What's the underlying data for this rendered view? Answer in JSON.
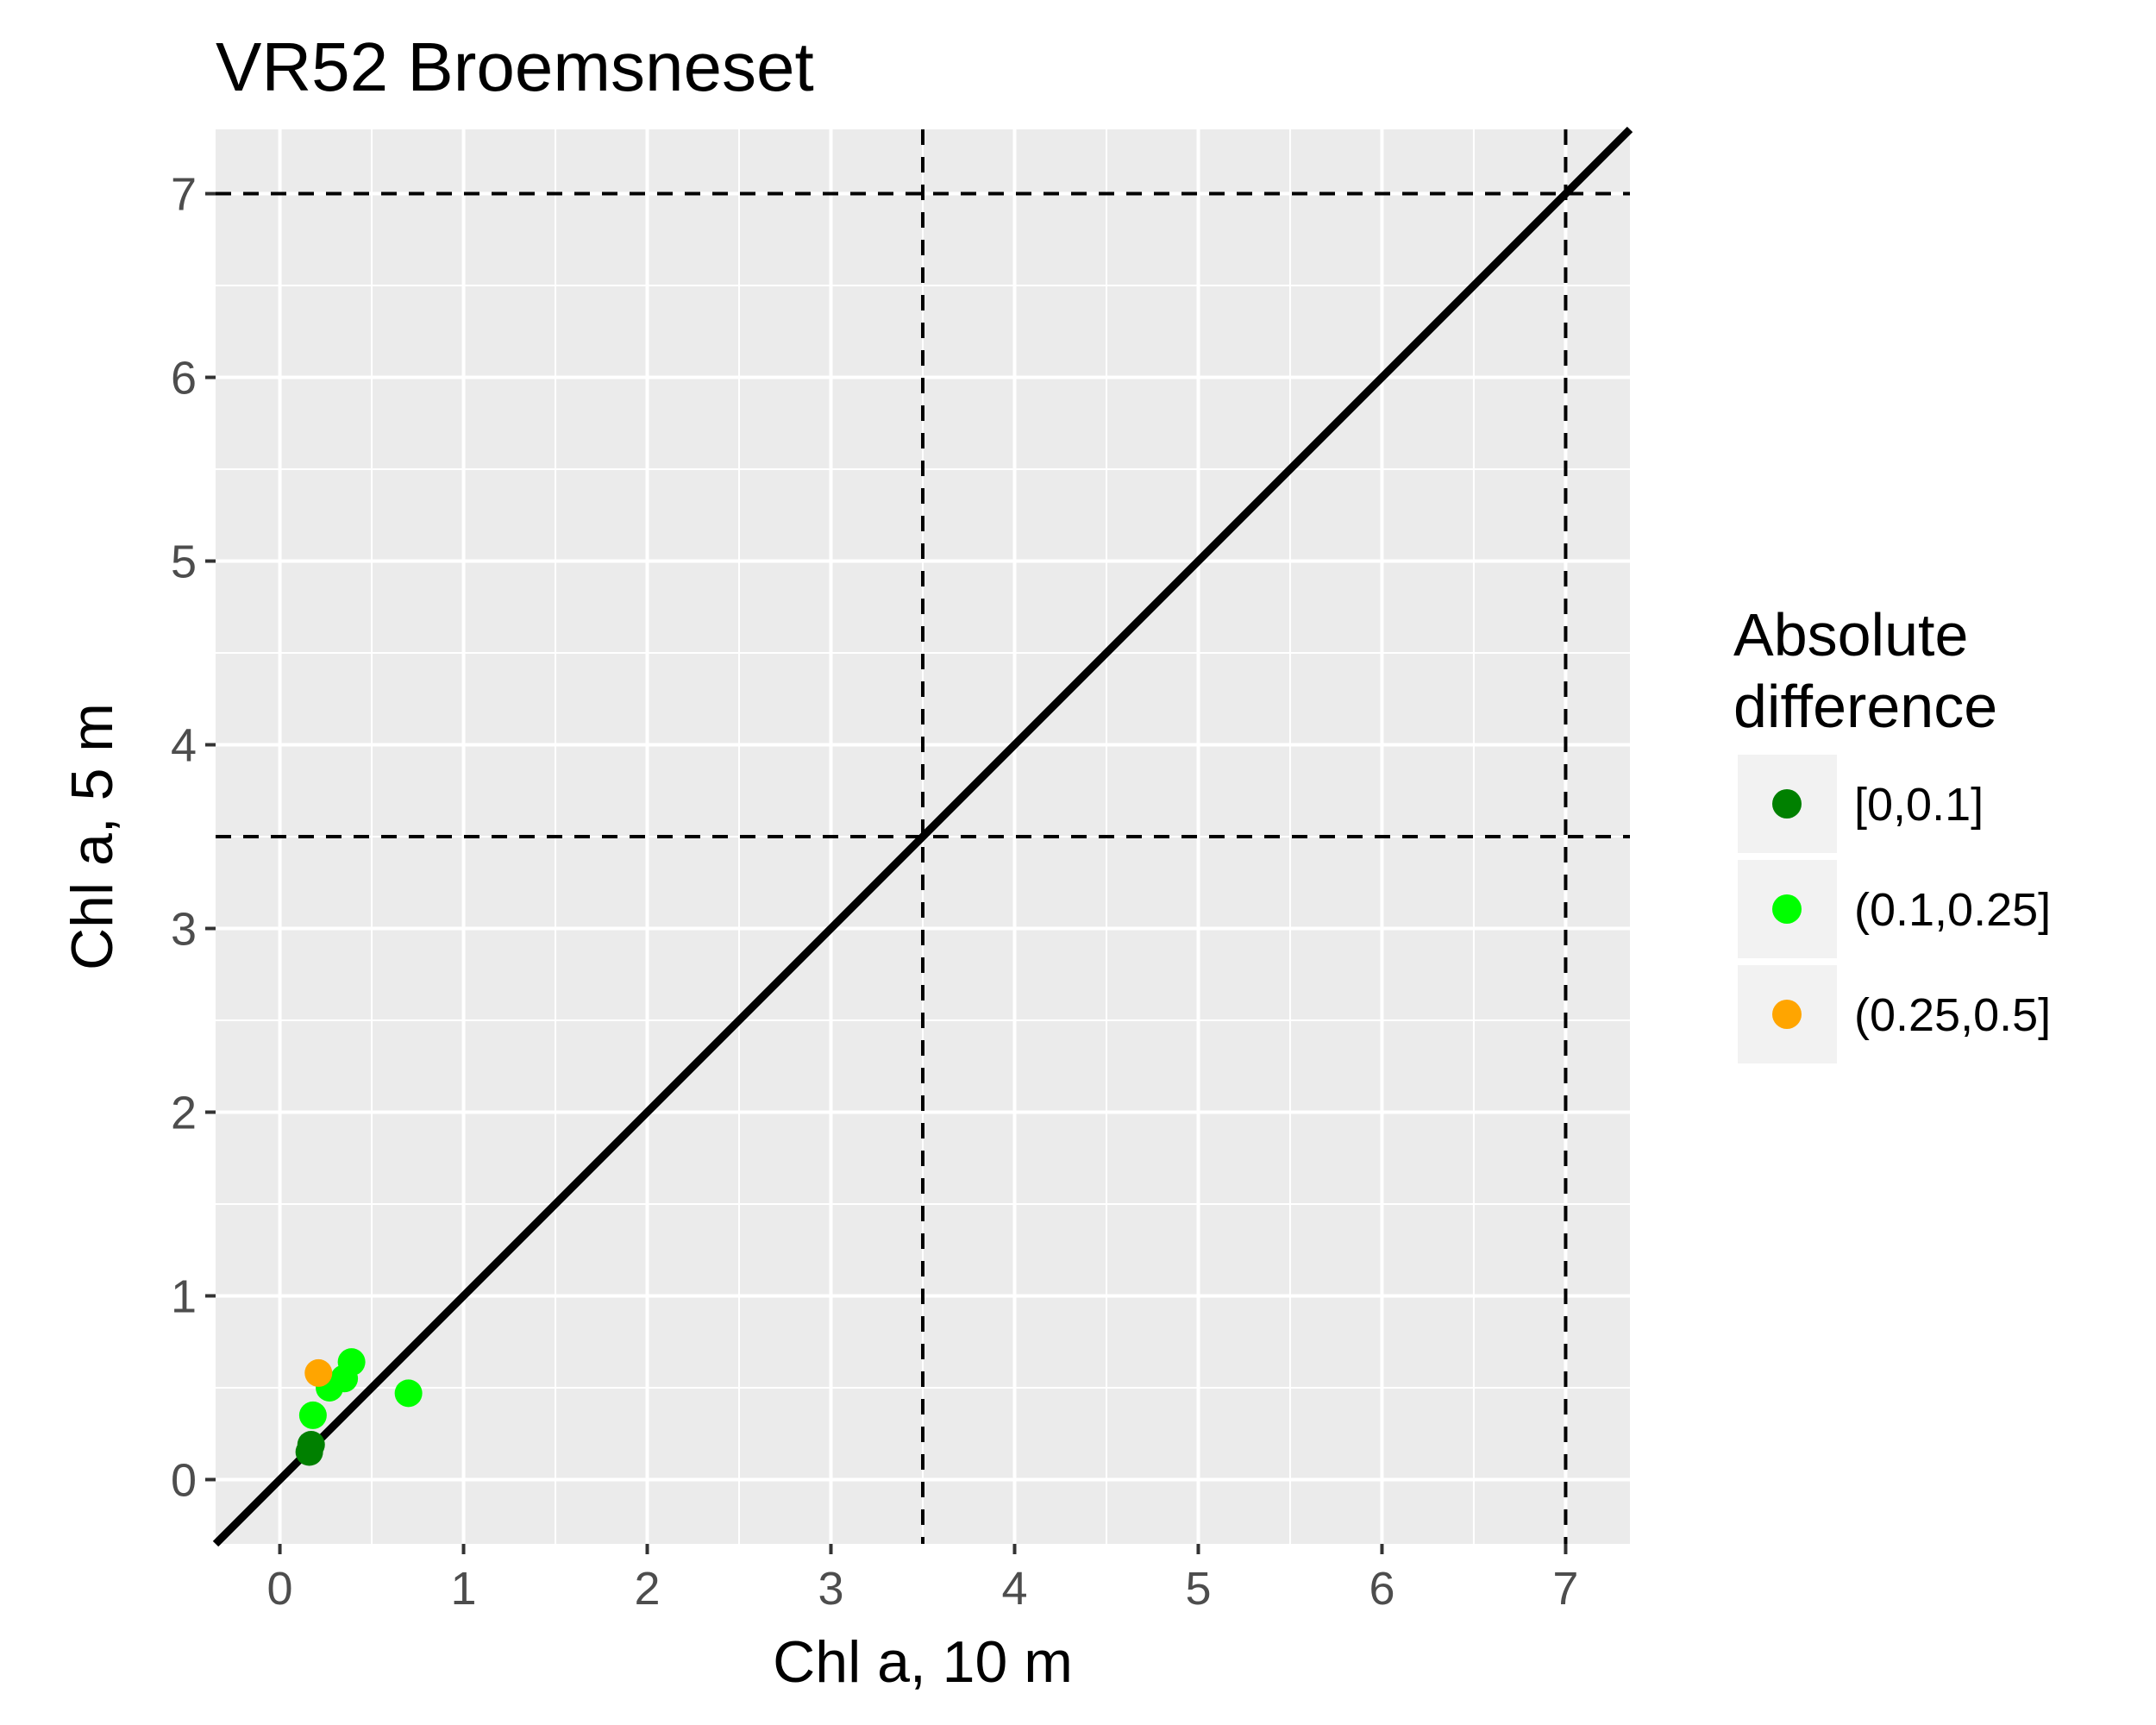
{
  "chart_data": {
    "type": "scatter",
    "title": "VR52 Broemsneset",
    "xlabel": "Chl a, 10 m",
    "ylabel": "Chl a, 5 m",
    "xlim": [
      -0.35,
      7.35
    ],
    "ylim": [
      -0.35,
      7.35
    ],
    "x_ticks": [
      "0",
      "1",
      "2",
      "3",
      "4",
      "5",
      "6",
      "7"
    ],
    "y_ticks": [
      "0",
      "1",
      "2",
      "3",
      "4",
      "5",
      "6",
      "7"
    ],
    "grid": true,
    "background": "#ebebeb",
    "identity_line": {
      "slope": 1,
      "intercept": 0,
      "color": "#000000"
    },
    "reference_lines": {
      "vertical": [
        3.5,
        7
      ],
      "horizontal": [
        3.5,
        7
      ],
      "style": "dashed"
    },
    "legend": {
      "title_lines": [
        "Absolute",
        "difference"
      ],
      "placement": "right",
      "entries": [
        {
          "label": "[0,0.1]",
          "color": "#008000"
        },
        {
          "label": "(0.1,0.25]",
          "color": "#00ff00"
        },
        {
          "label": "(0.25,0.5]",
          "color": "#ffa500"
        }
      ]
    },
    "points": [
      {
        "x": 0.16,
        "y": 0.15,
        "class": 0
      },
      {
        "x": 0.17,
        "y": 0.19,
        "class": 0
      },
      {
        "x": 0.18,
        "y": 0.35,
        "class": 1
      },
      {
        "x": 0.27,
        "y": 0.5,
        "class": 1
      },
      {
        "x": 0.35,
        "y": 0.55,
        "class": 1
      },
      {
        "x": 0.39,
        "y": 0.64,
        "class": 1
      },
      {
        "x": 0.7,
        "y": 0.47,
        "class": 1
      },
      {
        "x": 0.21,
        "y": 0.58,
        "class": 2
      }
    ]
  }
}
